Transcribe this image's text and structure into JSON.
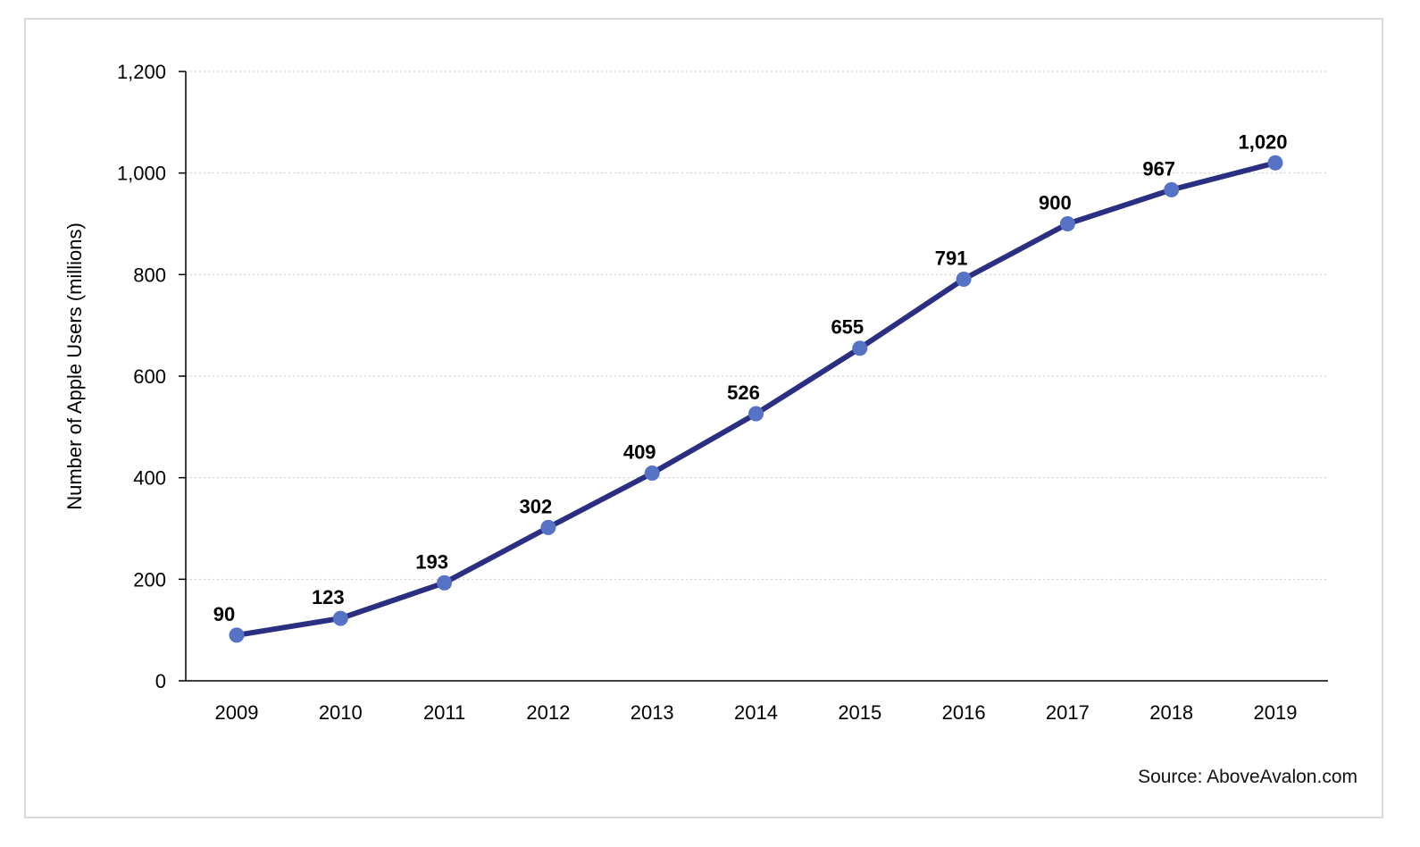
{
  "chart_data": {
    "type": "line",
    "categories": [
      "2009",
      "2010",
      "2011",
      "2012",
      "2013",
      "2014",
      "2015",
      "2016",
      "2017",
      "2018",
      "2019"
    ],
    "series": [
      {
        "values": [
          90,
          123,
          193,
          302,
          409,
          526,
          655,
          791,
          900,
          967,
          1020
        ]
      }
    ],
    "data_labels": [
      "90",
      "123",
      "193",
      "302",
      "409",
      "526",
      "655",
      "791",
      "900",
      "967",
      "1,020"
    ],
    "ylabel": "Number of Apple Users (millions)",
    "ylim": [
      0,
      1200
    ],
    "yticks": [
      0,
      200,
      400,
      600,
      800,
      1000,
      1200
    ],
    "ytick_labels": [
      "0",
      "200",
      "400",
      "600",
      "800",
      "1,000",
      "1,200"
    ],
    "grid": "horizontal dotted",
    "colors": {
      "line": "#2b2f82",
      "marker": "#5672c4",
      "grid": "#c8c8c8"
    }
  },
  "source": "Source: AboveAvalon.com"
}
